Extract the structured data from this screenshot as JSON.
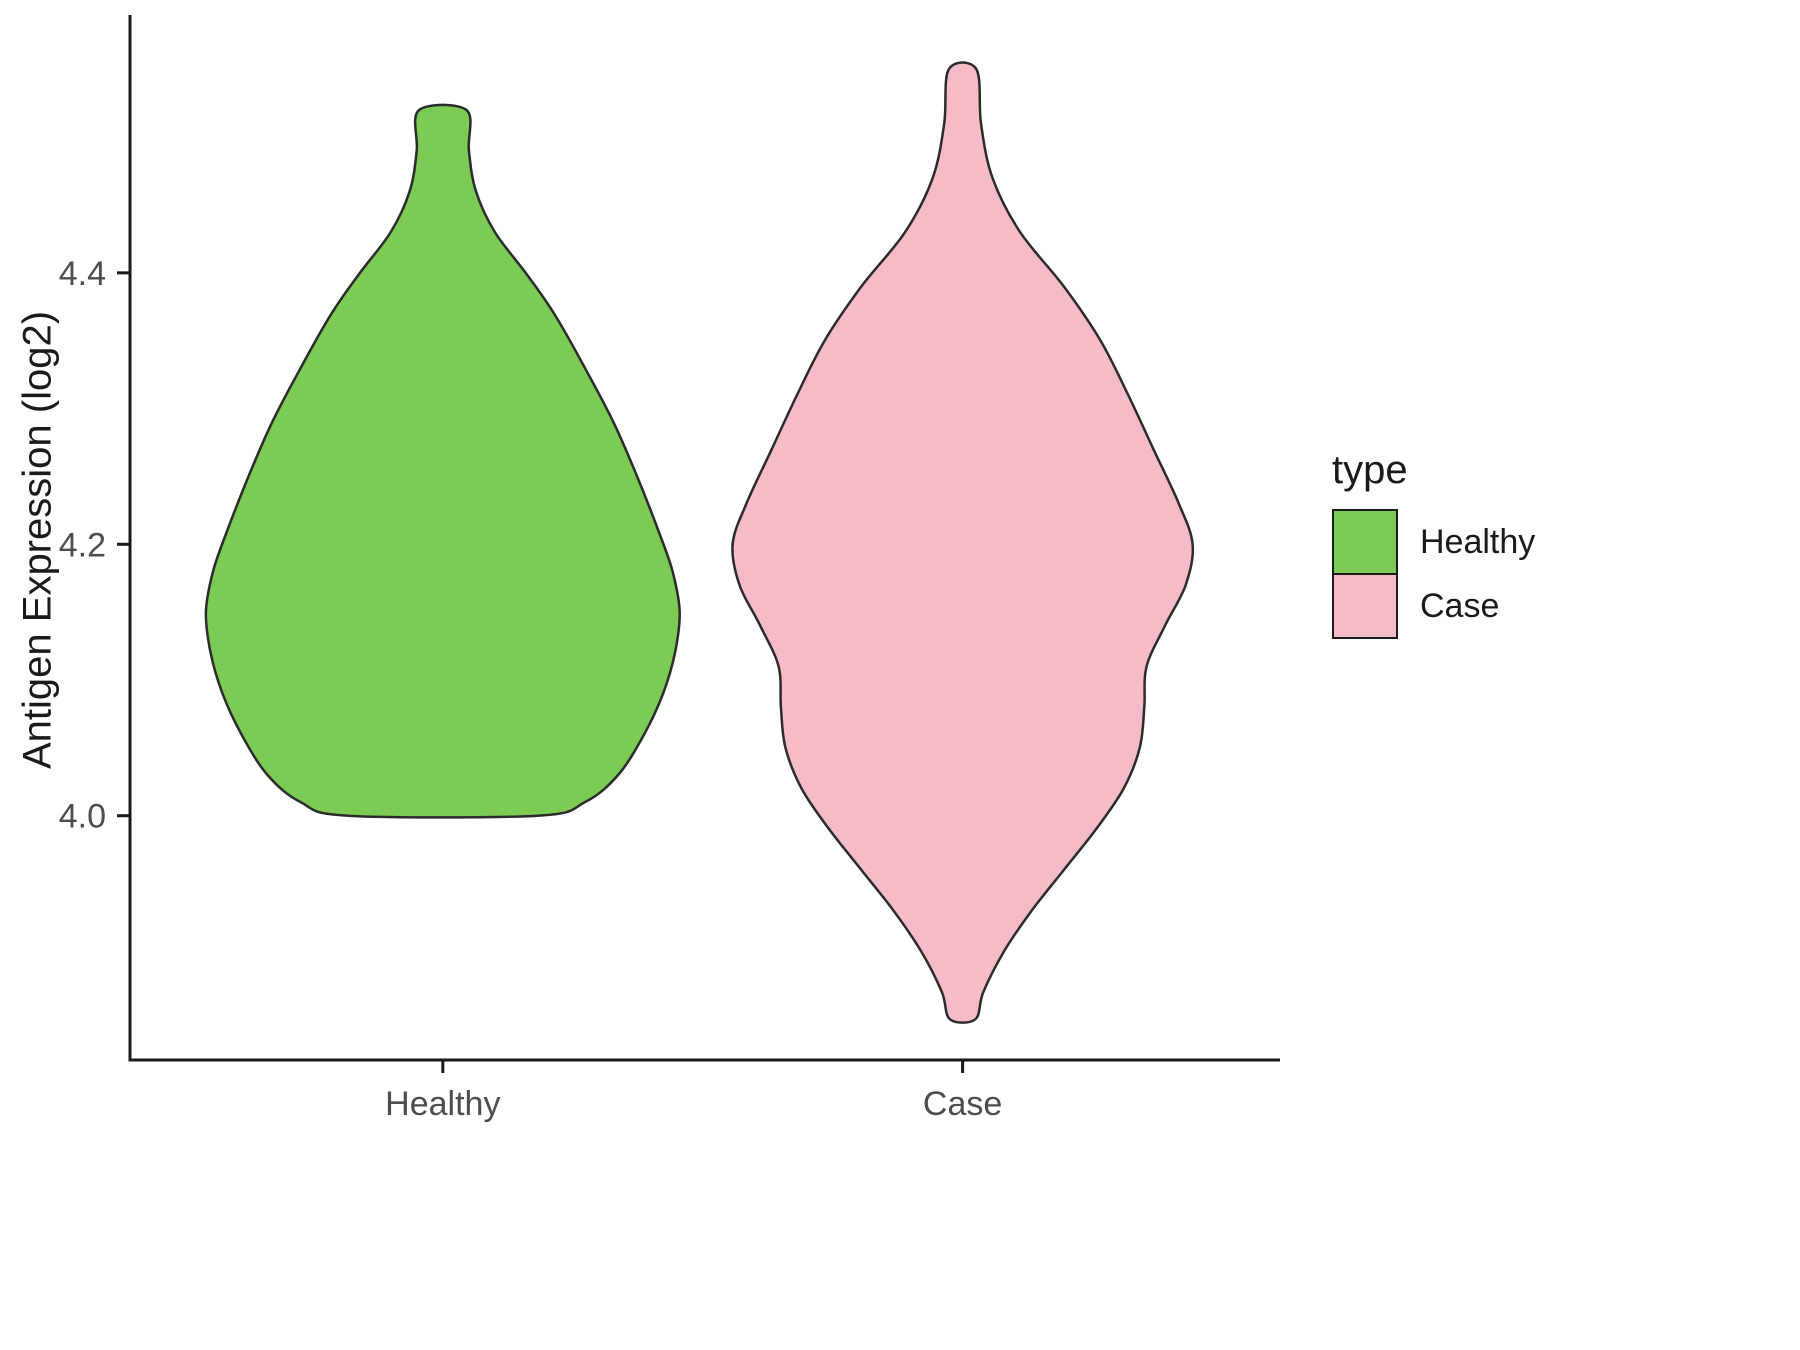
{
  "chart_data": {
    "type": "violin",
    "title": "",
    "xlabel": "",
    "ylabel": "Antigen Expression (log2)",
    "categories": [
      "Healthy",
      "Case"
    ],
    "y_ticks": [
      4.0,
      4.2,
      4.4
    ],
    "y_tick_labels": [
      "4.0",
      "4.2",
      "4.4"
    ],
    "ylim": [
      3.82,
      4.59
    ],
    "grid": false,
    "theme": "classic",
    "legend": {
      "title": "type",
      "position": "right",
      "entries": [
        {
          "label": "Healthy",
          "color": "#7BCB54"
        },
        {
          "label": "Case",
          "color": "#F5BCC8"
        }
      ]
    },
    "series": [
      {
        "name": "Healthy",
        "color": "#7BCB54",
        "outline": "#2b2b2b",
        "x_center": 0.272,
        "max_halfwidth_frac": 0.206,
        "profile": [
          [
            4.52,
            0.1
          ],
          [
            4.49,
            0.11
          ],
          [
            4.46,
            0.14
          ],
          [
            4.43,
            0.22
          ],
          [
            4.4,
            0.35
          ],
          [
            4.37,
            0.47
          ],
          [
            4.33,
            0.6
          ],
          [
            4.29,
            0.72
          ],
          [
            4.25,
            0.82
          ],
          [
            4.21,
            0.91
          ],
          [
            4.18,
            0.97
          ],
          [
            4.15,
            1.0
          ],
          [
            4.12,
            0.98
          ],
          [
            4.09,
            0.93
          ],
          [
            4.06,
            0.85
          ],
          [
            4.03,
            0.74
          ],
          [
            4.01,
            0.6
          ],
          [
            4.0,
            0.4
          ]
        ]
      },
      {
        "name": "Case",
        "color": "#F5BCC8",
        "outline": "#2b2b2b",
        "x_center": 0.724,
        "max_halfwidth_frac": 0.2,
        "profile": [
          [
            4.55,
            0.06
          ],
          [
            4.51,
            0.08
          ],
          [
            4.47,
            0.13
          ],
          [
            4.43,
            0.25
          ],
          [
            4.39,
            0.44
          ],
          [
            4.35,
            0.6
          ],
          [
            4.31,
            0.72
          ],
          [
            4.27,
            0.83
          ],
          [
            4.23,
            0.94
          ],
          [
            4.2,
            1.0
          ],
          [
            4.17,
            0.97
          ],
          [
            4.14,
            0.88
          ],
          [
            4.11,
            0.8
          ],
          [
            4.08,
            0.79
          ],
          [
            4.05,
            0.77
          ],
          [
            4.02,
            0.7
          ],
          [
            3.99,
            0.58
          ],
          [
            3.96,
            0.44
          ],
          [
            3.93,
            0.3
          ],
          [
            3.9,
            0.18
          ],
          [
            3.87,
            0.09
          ],
          [
            3.85,
            0.055
          ]
        ]
      }
    ],
    "axis_color": "#1a1a1a",
    "tick_label_color": "#4d4d4d"
  }
}
